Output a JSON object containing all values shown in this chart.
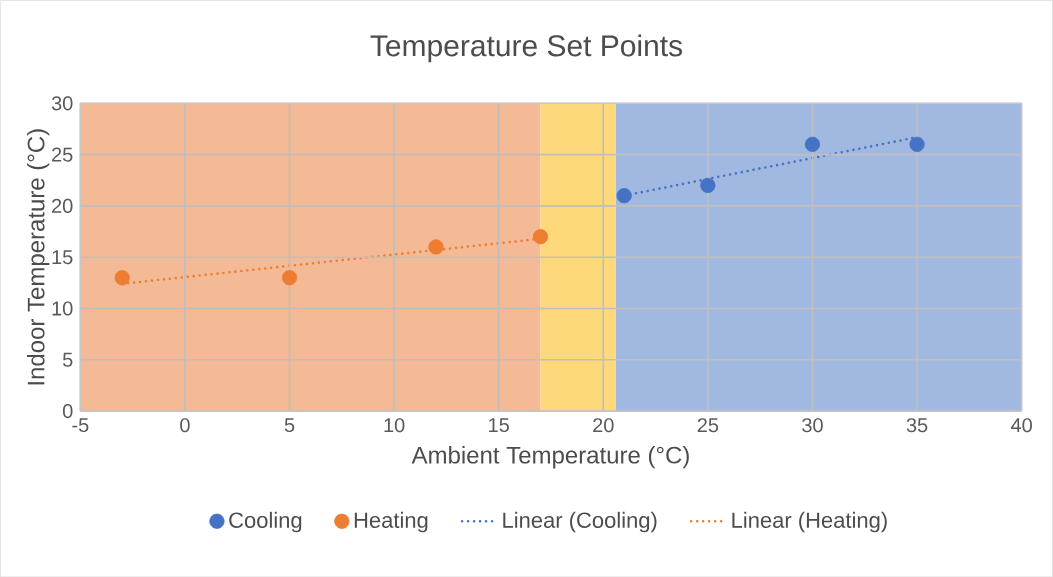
{
  "chart_data": {
    "type": "scatter",
    "title": "Temperature Set Points",
    "xlabel": "Ambient Temperature (°C)",
    "ylabel": "Indoor Temperature (°C)",
    "xlim": [
      -5,
      40
    ],
    "xticks": [
      -5,
      0,
      5,
      10,
      15,
      20,
      25,
      30,
      35,
      40
    ],
    "ylim": [
      0,
      30
    ],
    "yticks": [
      0,
      5,
      10,
      15,
      20,
      25,
      30
    ],
    "grid": true,
    "legend": "bottom",
    "marker": "circle",
    "bands": [
      {
        "axis": "x",
        "from": -5,
        "to": 17,
        "color": "#f4b995"
      },
      {
        "axis": "x",
        "from": 17,
        "to": 20.6,
        "color": "#fdd97c"
      },
      {
        "axis": "x",
        "from": 20.6,
        "to": 40,
        "color": "#a1b8e0"
      }
    ],
    "series": [
      {
        "name": "Cooling",
        "color": "#4472c4",
        "x": [
          21,
          25,
          30,
          35
        ],
        "values": [
          21,
          22,
          26,
          26
        ]
      },
      {
        "name": "Heating",
        "color": "#ed7d31",
        "x": [
          -3,
          5,
          12,
          17
        ],
        "values": [
          13,
          13,
          16,
          17
        ]
      },
      {
        "name": "Linear (Cooling)",
        "type": "line",
        "line_style": "dotted",
        "marker": "none",
        "color": "#4472c4",
        "x": [
          21,
          35
        ],
        "values": [
          21.0,
          26.7
        ]
      },
      {
        "name": "Linear (Heating)",
        "type": "line",
        "line_style": "dotted",
        "marker": "none",
        "color": "#ed7d31",
        "x": [
          -3,
          17
        ],
        "values": [
          12.4,
          16.8
        ]
      }
    ]
  }
}
